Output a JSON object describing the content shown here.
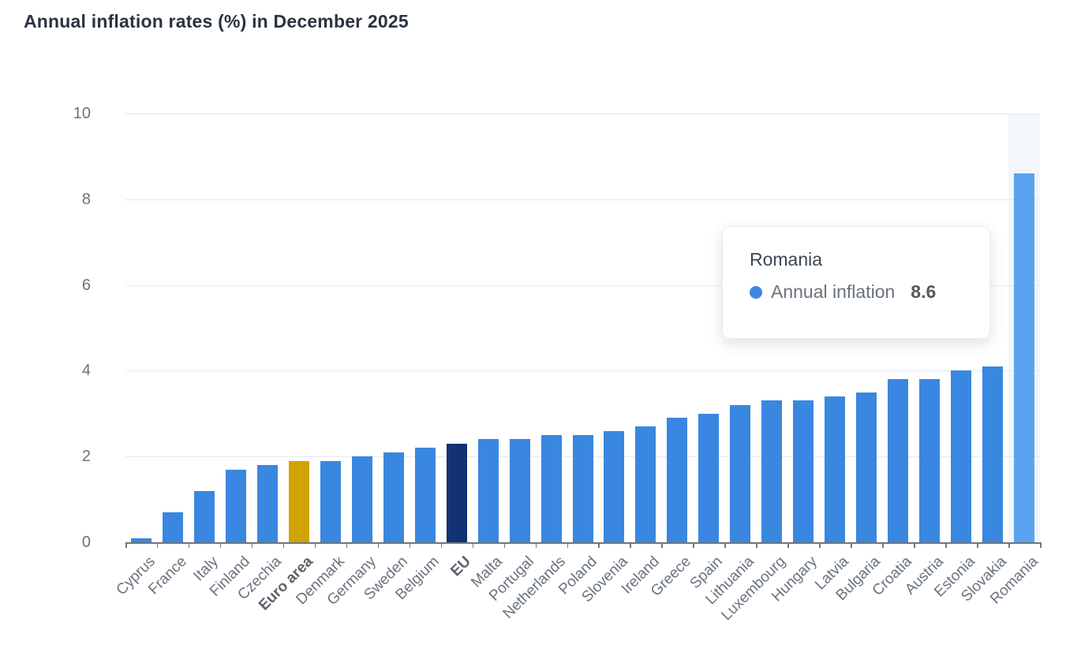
{
  "page": {
    "title": "Annual inflation rates (%) in December 2025"
  },
  "chart_data": {
    "type": "bar",
    "title": "Annual inflation rates (%) in December 2025",
    "series_name": "Annual inflation",
    "categories": [
      "Cyprus",
      "France",
      "Italy",
      "Finland",
      "Czechia",
      "Euro area",
      "Denmark",
      "Germany",
      "Sweden",
      "Belgium",
      "EU",
      "Malta",
      "Portugal",
      "Netherlands",
      "Poland",
      "Slovenia",
      "Ireland",
      "Greece",
      "Spain",
      "Lithuania",
      "Luxembourg",
      "Hungary",
      "Latvia",
      "Bulgaria",
      "Croatia",
      "Austria",
      "Estonia",
      "Slovakia",
      "Romania"
    ],
    "values": [
      0.1,
      0.7,
      1.2,
      1.7,
      1.8,
      1.9,
      1.9,
      2.0,
      2.1,
      2.2,
      2.3,
      2.4,
      2.4,
      2.5,
      2.5,
      2.6,
      2.7,
      2.9,
      3.0,
      3.2,
      3.3,
      3.3,
      3.4,
      3.5,
      3.8,
      3.8,
      4.0,
      4.1,
      8.6
    ],
    "ylim": [
      0,
      10
    ],
    "yticks": [
      0,
      2,
      4,
      6,
      8,
      10
    ],
    "xlabel": "",
    "ylabel": "",
    "grid": "horizontal-only",
    "legend": "none",
    "bold_categories": [
      "Euro area",
      "EU"
    ],
    "hovered_category": "Romania",
    "default_bar_color": "#3987e0",
    "special_colors": {
      "Euro area": "#cfa302",
      "EU": "#123274",
      "Romania": "#5ba3f0"
    },
    "hover_band_color": "#f3f6fa"
  },
  "tooltip": {
    "title": "Romania",
    "series_label": "Annual inflation",
    "value": "8.6",
    "dot_color": "#3d87e3"
  },
  "colors": {
    "title_text": "#2a3342",
    "axis_line": "#71757a",
    "grid_line": "#e4e8ef",
    "tick_label": "#6a7280"
  }
}
